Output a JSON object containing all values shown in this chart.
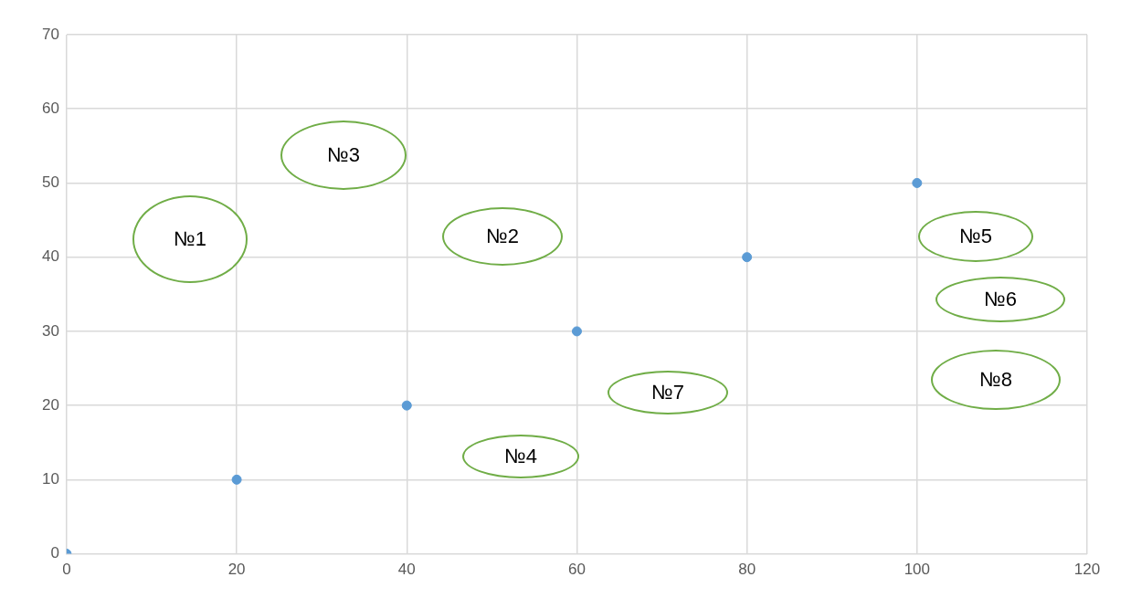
{
  "chart_data": {
    "type": "scatter",
    "x": [
      0,
      20,
      40,
      60,
      80,
      100
    ],
    "series": [
      {
        "color": "#5b9bd5",
        "values": [
          0,
          10,
          20,
          30,
          40,
          50
        ]
      }
    ],
    "xlim": [
      0,
      120
    ],
    "xticks": [
      0,
      20,
      40,
      60,
      80,
      100,
      120
    ],
    "ylim": [
      0,
      70
    ],
    "yticks": [
      0,
      10,
      20,
      30,
      40,
      50,
      60,
      70
    ],
    "grid": true,
    "legend": false,
    "marker": "circle",
    "annotations": [
      "№1",
      "№2",
      "№3",
      "№4",
      "№5",
      "№6",
      "№7",
      "№8"
    ]
  }
}
